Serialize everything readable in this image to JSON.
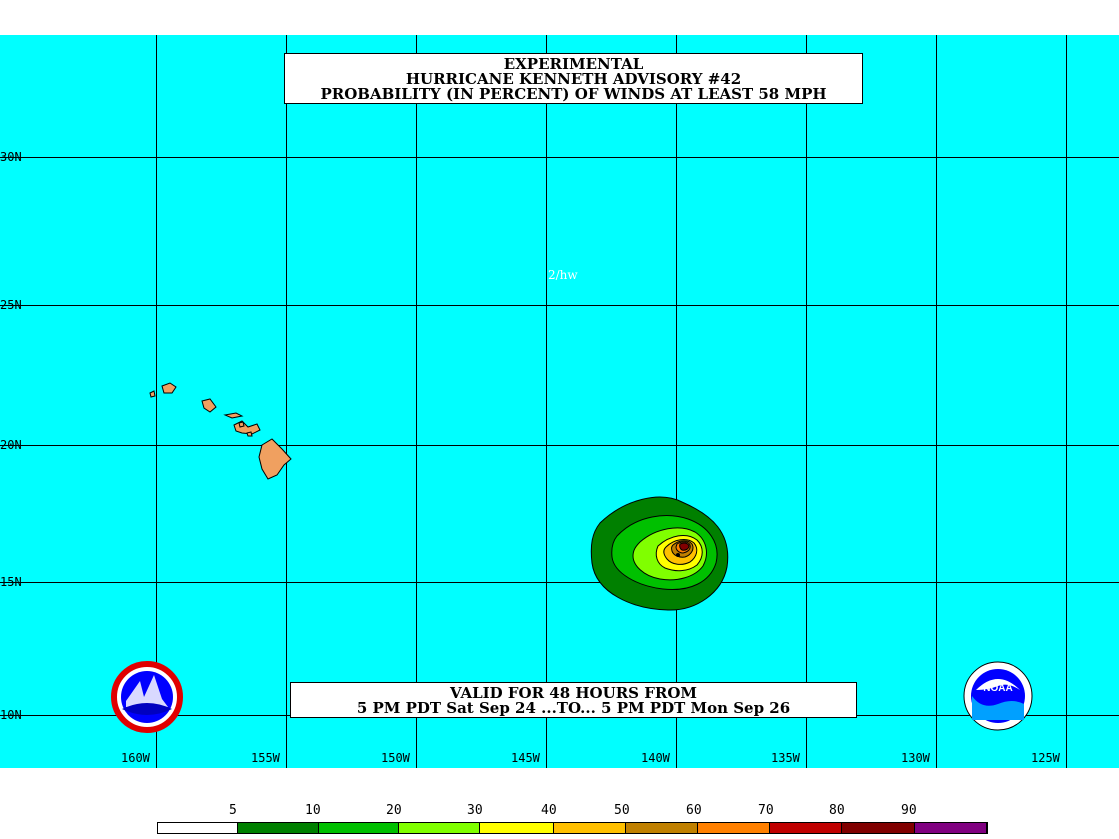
{
  "title": {
    "line1": "EXPERIMENTAL",
    "line2": "HURRICANE KENNETH ADVISORY #42",
    "line3": "PROBABILITY (IN PERCENT) OF WINDS AT LEAST 58 MPH"
  },
  "valid": {
    "line1": "VALID FOR 48 HOURS FROM",
    "line2": "5 PM PDT Sat Sep 24 ...TO... 5 PM PDT Mon Sep 26"
  },
  "initials": "2/hw",
  "latitude_labels": [
    "30N",
    "25N",
    "20N",
    "15N",
    "10N"
  ],
  "longitude_labels": [
    "160W",
    "155W",
    "150W",
    "145W",
    "140W",
    "135W",
    "130W",
    "125W"
  ],
  "legend": {
    "labels": [
      "5",
      "10",
      "20",
      "30",
      "40",
      "50",
      "60",
      "70",
      "80",
      "90"
    ],
    "colors": [
      "#ffffff",
      "#008000",
      "#00c000",
      "#80ff00",
      "#ffff00",
      "#ffc000",
      "#c08000",
      "#ff8000",
      "#c00000",
      "#800000",
      "#800080"
    ]
  },
  "colors": {
    "ocean": "#00ffff",
    "land": "#f0a060"
  },
  "logos": {
    "left": "nws-logo",
    "right": "noaa-logo",
    "noaa_text": "NOAA"
  }
}
